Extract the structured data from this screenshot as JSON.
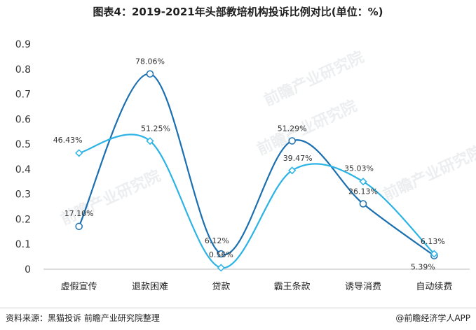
{
  "title": "图表4：2019-2021年头部教培机构投诉比例对比(单位：%)",
  "footer": {
    "source": "资料来源：黑猫投诉 前瞻产业研究院整理",
    "brand": "@前瞻经济学人APP"
  },
  "watermark": "前瞻产业研究院",
  "chart_data": {
    "type": "line",
    "categories": [
      "虚假宣传",
      "退款困难",
      "贷款",
      "霸王条款",
      "诱导消费",
      "自动续费"
    ],
    "ylim": [
      0,
      0.9
    ],
    "yticks": [
      "0",
      "0.1",
      "0.2",
      "0.3",
      "0.4",
      "0.5",
      "0.6",
      "0.7",
      "0.8",
      "0.9"
    ],
    "series": [
      {
        "color": "#1a6fb0",
        "marker": "circle",
        "values": [
          0.171,
          0.7806,
          0.0612,
          0.5129,
          0.2613,
          0.0539
        ],
        "labels": [
          "17.10%",
          "78.06%",
          "6.12%",
          "51.29%",
          "26.13%",
          "5.39%"
        ]
      },
      {
        "color": "#2bb3e6",
        "marker": "diamond",
        "values": [
          0.4643,
          0.5125,
          0.0056,
          0.3947,
          0.3503,
          0.0613
        ],
        "labels": [
          "46.43%",
          "51.25%",
          "0.56%",
          "39.47%",
          "35.03%",
          "6.13%"
        ]
      }
    ]
  }
}
